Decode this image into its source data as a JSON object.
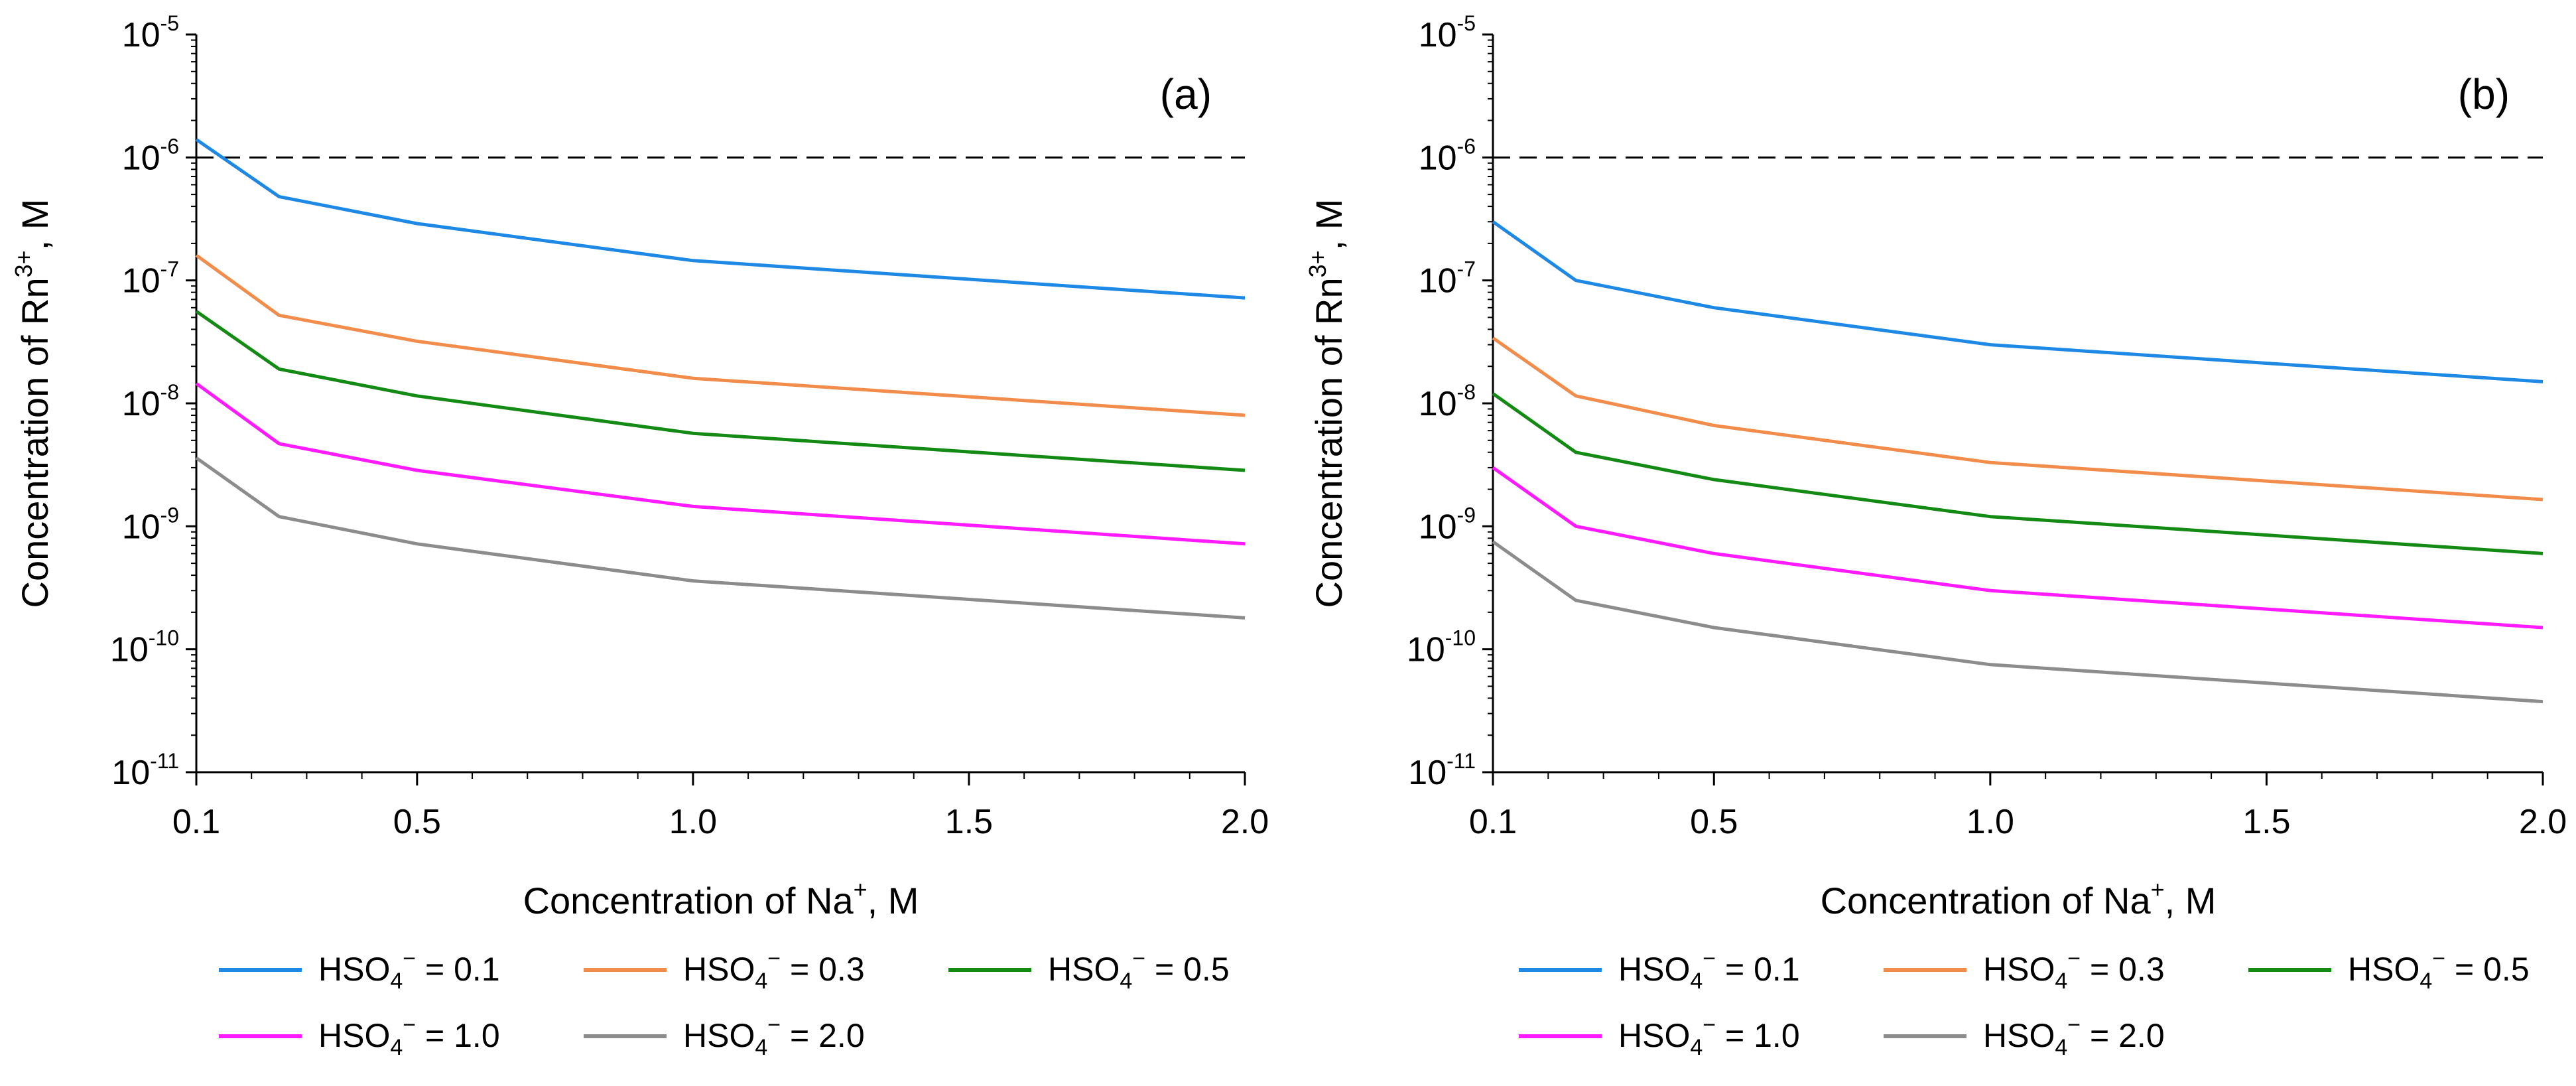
{
  "chart_data": [
    {
      "type": "line",
      "panel_label": "(a)",
      "xlabel": "Concentration of Na",
      "xlabel_sup": "+",
      "xlabel_unit": ", M",
      "ylabel": "Concentration of Rn",
      "ylabel_sup": "3+",
      "ylabel_unit": ", M",
      "y_scale": "log",
      "ylim_exp": [
        -11,
        -5
      ],
      "xlim": [
        0.1,
        2.0
      ],
      "x_ticks": [
        0.1,
        0.5,
        1.0,
        1.5,
        2.0
      ],
      "x_tick_labels": [
        "0.1",
        "0.5",
        "1.0",
        "1.5",
        "2.0"
      ],
      "y_tick_base": "10",
      "y_tick_exponents": [
        "-11",
        "-10",
        "-9",
        "-8",
        "-7",
        "-6",
        "-5"
      ],
      "grid": false,
      "reference_line": {
        "y": 1e-06,
        "style": "dashed"
      },
      "x": [
        0.1,
        0.25,
        0.5,
        1.0,
        2.0
      ],
      "series": [
        {
          "name": "HSO4⁻ = 0.1",
          "legend_text": "HSO",
          "legend_sub": "4",
          "legend_sup": "−",
          "legend_value": " = 0.1",
          "color": "#1e88e5",
          "values": [
            1.4e-06,
            4.8e-07,
            2.9e-07,
            1.45e-07,
            7.2e-08
          ]
        },
        {
          "name": "HSO4⁻ = 0.3",
          "legend_text": "HSO",
          "legend_sub": "4",
          "legend_sup": "−",
          "legend_value": " = 0.3",
          "color": "#f28c4b",
          "values": [
            1.6e-07,
            5.2e-08,
            3.2e-08,
            1.6e-08,
            8e-09
          ]
        },
        {
          "name": "HSO4⁻ = 0.5",
          "legend_text": "HSO",
          "legend_sub": "4",
          "legend_sup": "−",
          "legend_value": " = 0.5",
          "color": "#138a13",
          "values": [
            5.6e-08,
            1.9e-08,
            1.15e-08,
            5.7e-09,
            2.85e-09
          ]
        },
        {
          "name": "HSO4⁻ = 1.0",
          "legend_text": "HSO",
          "legend_sub": "4",
          "legend_sup": "−",
          "legend_value": " = 1.0",
          "color": "#ff1aff",
          "values": [
            1.45e-08,
            4.7e-09,
            2.85e-09,
            1.45e-09,
            7.2e-10
          ]
        },
        {
          "name": "HSO4⁻ = 2.0",
          "legend_text": "HSO",
          "legend_sub": "4",
          "legend_sup": "−",
          "legend_value": " = 2.0",
          "color": "#8c8c8c",
          "values": [
            3.6e-09,
            1.2e-09,
            7.2e-10,
            3.6e-10,
            1.8e-10
          ]
        }
      ],
      "legend_position": "bottom"
    },
    {
      "type": "line",
      "panel_label": "(b)",
      "xlabel": "Concentration of Na",
      "xlabel_sup": "+",
      "xlabel_unit": ", M",
      "ylabel": "Concentration of Rn",
      "ylabel_sup": "3+",
      "ylabel_unit": ", M",
      "y_scale": "log",
      "ylim_exp": [
        -11,
        -5
      ],
      "xlim": [
        0.1,
        2.0
      ],
      "x_ticks": [
        0.1,
        0.5,
        1.0,
        1.5,
        2.0
      ],
      "x_tick_labels": [
        "0.1",
        "0.5",
        "1.0",
        "1.5",
        "2.0"
      ],
      "y_tick_base": "10",
      "y_tick_exponents": [
        "-11",
        "-10",
        "-9",
        "-8",
        "-7",
        "-6",
        "-5"
      ],
      "grid": false,
      "reference_line": {
        "y": 1e-06,
        "style": "dashed"
      },
      "x": [
        0.1,
        0.25,
        0.5,
        1.0,
        2.0
      ],
      "series": [
        {
          "name": "HSO4⁻ = 0.1",
          "legend_text": "HSO",
          "legend_sub": "4",
          "legend_sup": "−",
          "legend_value": " = 0.1",
          "color": "#1e88e5",
          "values": [
            3e-07,
            1e-07,
            6e-08,
            3e-08,
            1.5e-08
          ]
        },
        {
          "name": "HSO4⁻ = 0.3",
          "legend_text": "HSO",
          "legend_sub": "4",
          "legend_sup": "−",
          "legend_value": " = 0.3",
          "color": "#f28c4b",
          "values": [
            3.4e-08,
            1.15e-08,
            6.6e-09,
            3.3e-09,
            1.65e-09
          ]
        },
        {
          "name": "HSO4⁻ = 0.5",
          "legend_text": "HSO",
          "legend_sub": "4",
          "legend_sup": "−",
          "legend_value": " = 0.5",
          "color": "#138a13",
          "values": [
            1.2e-08,
            4e-09,
            2.4e-09,
            1.2e-09,
            6e-10
          ]
        },
        {
          "name": "HSO4⁻ = 1.0",
          "legend_text": "HSO",
          "legend_sub": "4",
          "legend_sup": "−",
          "legend_value": " = 1.0",
          "color": "#ff1aff",
          "values": [
            3e-09,
            1e-09,
            6e-10,
            3e-10,
            1.5e-10
          ]
        },
        {
          "name": "HSO4⁻ = 2.0",
          "legend_text": "HSO",
          "legend_sub": "4",
          "legend_sup": "−",
          "legend_value": " = 2.0",
          "color": "#8c8c8c",
          "values": [
            7.5e-10,
            2.5e-10,
            1.5e-10,
            7.5e-11,
            3.75e-11
          ]
        }
      ],
      "legend_position": "bottom"
    }
  ]
}
